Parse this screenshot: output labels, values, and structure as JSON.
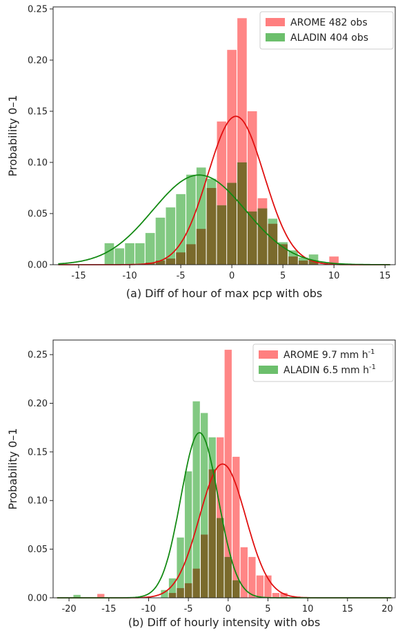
{
  "chart_data": [
    {
      "type": "bar",
      "panel": "a",
      "xlabel": "(a) Diff of hour of max pcp with obs",
      "ylabel": "Probability 0–1",
      "xlim": [
        -17.5,
        16
      ],
      "ylim": [
        0,
        0.252
      ],
      "xticks": [
        -15,
        -10,
        -5,
        0,
        5,
        10,
        15
      ],
      "yticks": [
        0,
        0.05,
        0.1,
        0.15,
        0.2,
        0.25
      ],
      "ytick_labels": [
        "0.00",
        "0.05",
        "0.10",
        "0.15",
        "0.20",
        "0.25"
      ],
      "bin_width": 1,
      "legend_position": "top-right",
      "series": [
        {
          "name": "AROME",
          "legend_label": "AROME 482 obs",
          "color": "#ff7f7f",
          "bins": [
            {
              "x": -8,
              "y": 0.002
            },
            {
              "x": -7,
              "y": 0.004
            },
            {
              "x": -6,
              "y": 0.006
            },
            {
              "x": -5,
              "y": 0.012
            },
            {
              "x": -4,
              "y": 0.02
            },
            {
              "x": -3,
              "y": 0.035
            },
            {
              "x": -2,
              "y": 0.075
            },
            {
              "x": -1,
              "y": 0.14
            },
            {
              "x": 0,
              "y": 0.21
            },
            {
              "x": 1,
              "y": 0.241
            },
            {
              "x": 2,
              "y": 0.15
            },
            {
              "x": 3,
              "y": 0.065
            },
            {
              "x": 4,
              "y": 0.04
            },
            {
              "x": 5,
              "y": 0.02
            },
            {
              "x": 6,
              "y": 0.008
            },
            {
              "x": 7,
              "y": 0.004
            },
            {
              "x": 8,
              "y": 0.004
            },
            {
              "x": 10,
              "y": 0.008
            }
          ],
          "fit": {
            "mean": 0.4,
            "sd": 2.75
          }
        },
        {
          "name": "ALADIN",
          "legend_label": "ALADIN 404 obs",
          "color": "#6cbf6c",
          "bins": [
            {
              "x": -12,
              "y": 0.021
            },
            {
              "x": -11,
              "y": 0.016
            },
            {
              "x": -10,
              "y": 0.021
            },
            {
              "x": -9,
              "y": 0.021
            },
            {
              "x": -8,
              "y": 0.031
            },
            {
              "x": -7,
              "y": 0.046
            },
            {
              "x": -6,
              "y": 0.056
            },
            {
              "x": -5,
              "y": 0.069
            },
            {
              "x": -4,
              "y": 0.088
            },
            {
              "x": -3,
              "y": 0.095
            },
            {
              "x": -2,
              "y": 0.084
            },
            {
              "x": -1,
              "y": 0.058
            },
            {
              "x": 0,
              "y": 0.08
            },
            {
              "x": 1,
              "y": 0.1
            },
            {
              "x": 2,
              "y": 0.052
            },
            {
              "x": 3,
              "y": 0.055
            },
            {
              "x": 4,
              "y": 0.045
            },
            {
              "x": 5,
              "y": 0.022
            },
            {
              "x": 6,
              "y": 0.014
            },
            {
              "x": 7,
              "y": 0.007
            },
            {
              "x": 8,
              "y": 0.01
            }
          ],
          "fit": {
            "mean": -3.2,
            "sd": 4.55
          }
        }
      ]
    },
    {
      "type": "bar",
      "panel": "b",
      "xlabel": "(b) Diff of hourly intensity with obs",
      "ylabel": "Probability 0–1",
      "xlim": [
        -22,
        21
      ],
      "ylim": [
        0,
        0.265
      ],
      "xticks": [
        -20,
        -15,
        -10,
        -5,
        0,
        5,
        10,
        15,
        20
      ],
      "yticks": [
        0,
        0.05,
        0.1,
        0.15,
        0.2,
        0.25
      ],
      "ytick_labels": [
        "0.00",
        "0.05",
        "0.10",
        "0.15",
        "0.20",
        "0.25"
      ],
      "bin_width": 1,
      "legend_position": "top-right",
      "series": [
        {
          "name": "AROME",
          "legend_label": "AROME 9.7",
          "legend_unit": "mm h",
          "legend_sup": "-1",
          "color": "#ff7f7f",
          "bins": [
            {
              "x": -16,
              "y": 0.004
            },
            {
              "x": -7,
              "y": 0.005
            },
            {
              "x": -6,
              "y": 0.01
            },
            {
              "x": -5,
              "y": 0.015
            },
            {
              "x": -4,
              "y": 0.03
            },
            {
              "x": -3,
              "y": 0.065
            },
            {
              "x": -2,
              "y": 0.132
            },
            {
              "x": -1,
              "y": 0.165
            },
            {
              "x": 0,
              "y": 0.255
            },
            {
              "x": 1,
              "y": 0.145
            },
            {
              "x": 2,
              "y": 0.052
            },
            {
              "x": 3,
              "y": 0.042
            },
            {
              "x": 4,
              "y": 0.023
            },
            {
              "x": 5,
              "y": 0.023
            },
            {
              "x": 6,
              "y": 0.005
            },
            {
              "x": 7,
              "y": 0.005
            }
          ],
          "fit": {
            "mean": -0.7,
            "sd": 2.9
          }
        },
        {
          "name": "ALADIN",
          "legend_label": "ALADIN 6.5",
          "legend_unit": "mm h",
          "legend_sup": "-1",
          "color": "#6cbf6c",
          "bins": [
            {
              "x": -19,
              "y": 0.003
            },
            {
              "x": -8,
              "y": 0.008
            },
            {
              "x": -7,
              "y": 0.02
            },
            {
              "x": -6,
              "y": 0.062
            },
            {
              "x": -5,
              "y": 0.13
            },
            {
              "x": -4,
              "y": 0.202
            },
            {
              "x": -3,
              "y": 0.19
            },
            {
              "x": -2,
              "y": 0.165
            },
            {
              "x": -1,
              "y": 0.082
            },
            {
              "x": 0,
              "y": 0.042
            },
            {
              "x": 1,
              "y": 0.018
            }
          ],
          "fit": {
            "mean": -3.6,
            "sd": 2.35
          }
        }
      ]
    }
  ]
}
